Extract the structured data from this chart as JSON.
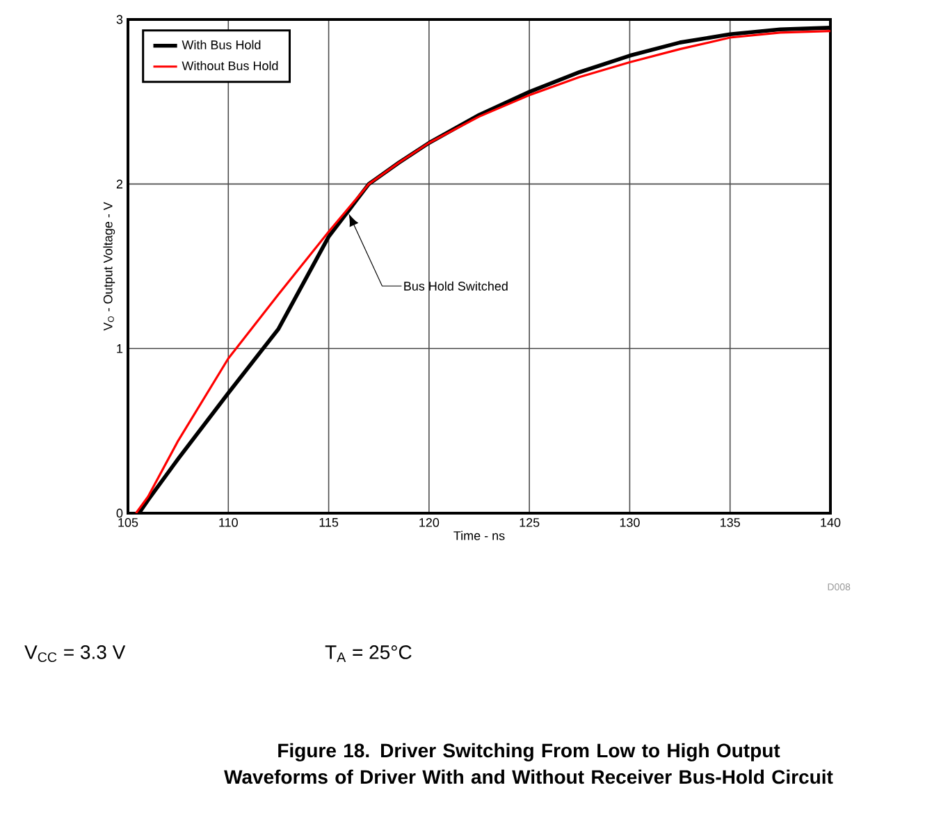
{
  "chart_data": {
    "type": "line",
    "title": "Figure 18. Driver Switching From Low to High Output Waveforms of Driver With and Without Receiver Bus-Hold Circuit",
    "xlabel": "Time - ns",
    "ylabel": "V$_{O}$ - Output Voltage - V",
    "xlim": [
      105,
      140
    ],
    "xticks": [
      105,
      110,
      115,
      120,
      125,
      130,
      135,
      140
    ],
    "ylim": [
      0,
      3
    ],
    "yticks": [
      0,
      1,
      2,
      3
    ],
    "grid": true,
    "legend": "top left",
    "line_style": "solid",
    "marker": "none",
    "series": [
      {
        "name": "With Bus Hold",
        "color": "#000000",
        "x": [
          105.55,
          106,
          107.5,
          110,
          112.5,
          115,
          117,
          118.5,
          120,
          122.5,
          125,
          127.5,
          130,
          132.5,
          135,
          137.5,
          140
        ],
        "values": [
          0,
          0.08,
          0.33,
          0.73,
          1.12,
          1.68,
          2.0,
          2.13,
          2.25,
          2.42,
          2.56,
          2.68,
          2.78,
          2.86,
          2.91,
          2.94,
          2.95
        ]
      },
      {
        "name": "Without Bus Hold",
        "color": "#ff0000",
        "x": [
          105.4,
          106,
          107.5,
          110,
          112.5,
          115,
          117,
          118.5,
          120,
          122.5,
          125,
          127.5,
          130,
          132.5,
          135,
          137.5,
          140
        ],
        "values": [
          0,
          0.1,
          0.44,
          0.94,
          1.33,
          1.71,
          2.0,
          2.13,
          2.25,
          2.41,
          2.54,
          2.65,
          2.74,
          2.82,
          2.89,
          2.92,
          2.93
        ]
      }
    ],
    "annotations": [
      {
        "text": "Bus Hold Switched",
        "x": 116,
        "y": 1.82
      },
      "D008",
      "V$_{CC}$ = 3.3 V",
      "T$_{A}$ = 25°C"
    ]
  }
}
